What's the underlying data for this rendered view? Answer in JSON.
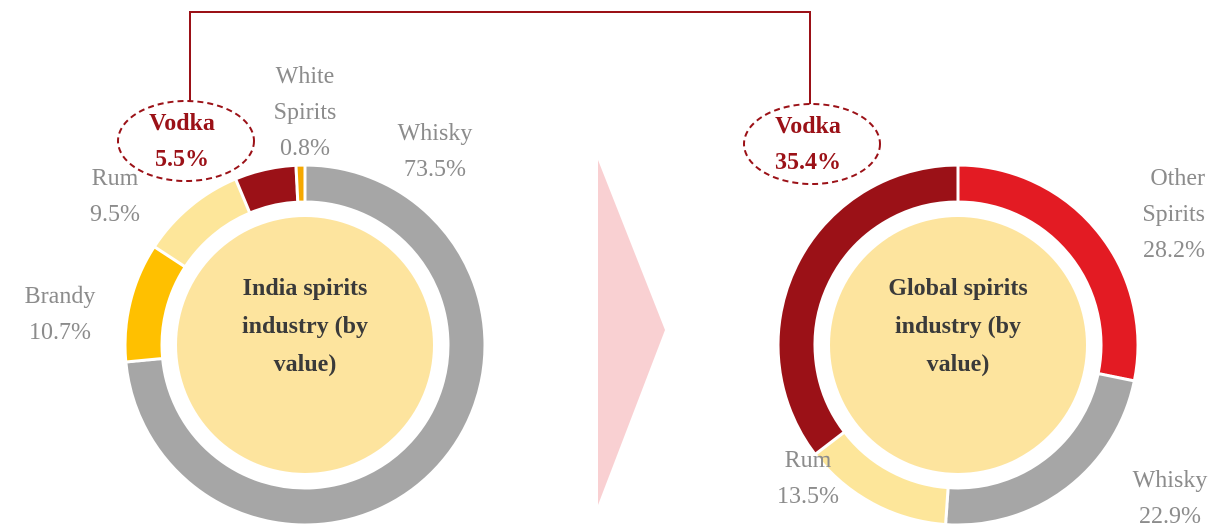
{
  "chart_data": [
    {
      "type": "pie",
      "donut": true,
      "title": "India spirits industry (by value)",
      "categories": [
        "Whisky",
        "Brandy",
        "Rum",
        "Vodka",
        "White Spirits"
      ],
      "values": [
        73.5,
        10.7,
        9.5,
        5.5,
        0.8
      ],
      "value_labels": [
        "73.5%",
        "10.7%",
        "9.5%",
        "5.5%",
        "0.8%"
      ],
      "colors": [
        "#a6a6a6",
        "#ffc000",
        "#fde69a",
        "#9b1117",
        "#f5a800"
      ],
      "highlight": "Vodka"
    },
    {
      "type": "pie",
      "donut": true,
      "title": "Global spirits industry (by value)",
      "categories": [
        "Other Spirits",
        "Whisky",
        "Rum",
        "Vodka"
      ],
      "values": [
        28.2,
        22.9,
        13.5,
        35.4
      ],
      "value_labels": [
        "28.2%",
        "22.9%",
        "13.5%",
        "35.4%"
      ],
      "colors": [
        "#e31b23",
        "#a6a6a6",
        "#fde69a",
        "#9b1117"
      ],
      "highlight": "Vodka"
    }
  ]
}
